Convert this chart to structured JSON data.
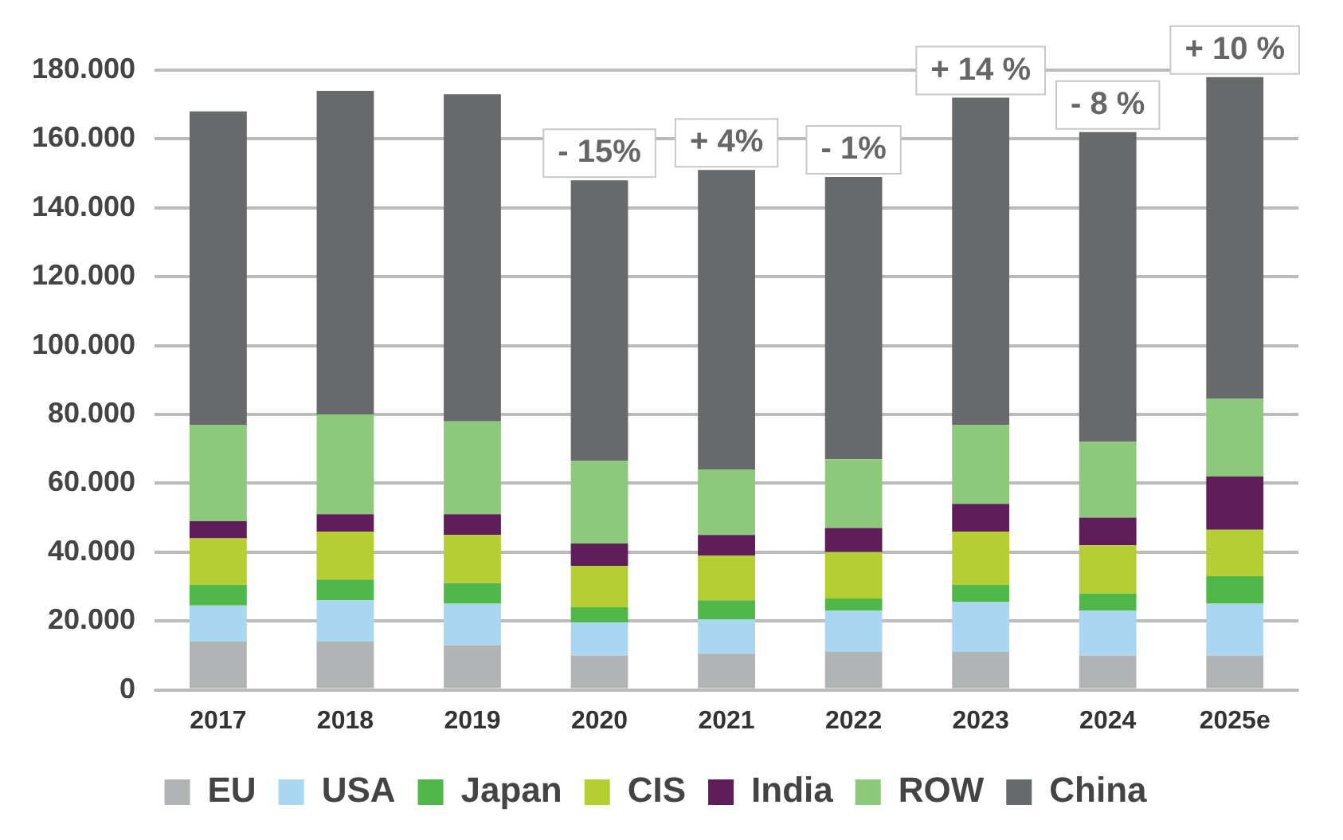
{
  "chart_data": {
    "type": "bar",
    "stacked": true,
    "categories": [
      "2017",
      "2018",
      "2019",
      "2020",
      "2021",
      "2022",
      "2023",
      "2024",
      "2025e"
    ],
    "series": [
      {
        "name": "EU",
        "color": "#b1b3b4",
        "values": [
          14000,
          14000,
          13000,
          10000,
          10500,
          11000,
          11000,
          10000,
          10000
        ]
      },
      {
        "name": "USA",
        "color": "#a9d6f0",
        "values": [
          10500,
          12000,
          12000,
          9500,
          10000,
          12000,
          14500,
          13000,
          15000
        ]
      },
      {
        "name": "Japan",
        "color": "#4fb848",
        "values": [
          6000,
          6000,
          6000,
          4500,
          5500,
          3500,
          5000,
          5000,
          8000
        ]
      },
      {
        "name": "CIS",
        "color": "#b5cf32",
        "values": [
          13500,
          14000,
          14000,
          12000,
          13000,
          13500,
          15500,
          14000,
          13500
        ]
      },
      {
        "name": "India",
        "color": "#5f1d5a",
        "values": [
          5000,
          5000,
          6000,
          6500,
          6000,
          7000,
          8000,
          8000,
          15500
        ]
      },
      {
        "name": "ROW",
        "color": "#8cc97a",
        "values": [
          28000,
          29000,
          27000,
          24000,
          19000,
          20000,
          23000,
          22000,
          22500
        ]
      },
      {
        "name": "China",
        "color": "#676a6a",
        "values": [
          91000,
          94000,
          95000,
          81500,
          87000,
          82000,
          95000,
          90000,
          93500
        ]
      }
    ],
    "ylim": [
      0,
      180000
    ],
    "yticks": [
      {
        "value": 0,
        "label": "0"
      },
      {
        "value": 20000,
        "label": "20.000"
      },
      {
        "value": 40000,
        "label": "40.000"
      },
      {
        "value": 60000,
        "label": "60.000"
      },
      {
        "value": 80000,
        "label": "80.000"
      },
      {
        "value": 100000,
        "label": "100.000"
      },
      {
        "value": 120000,
        "label": "120.000"
      },
      {
        "value": 140000,
        "label": "140.000"
      },
      {
        "value": 160000,
        "label": "160.000"
      },
      {
        "value": 180000,
        "label": "180.000"
      }
    ],
    "grid": "y",
    "legend": "bottom",
    "annotations": [
      {
        "text": "- 15%",
        "x": "2020",
        "y": 148000
      },
      {
        "text": "+ 4%",
        "x": "2021",
        "y": 151000
      },
      {
        "text": "- 1%",
        "x": "2022",
        "y": 149000
      },
      {
        "text": "+ 14 %",
        "x": "2023",
        "y": 172000
      },
      {
        "text": "- 8 %",
        "x": "2024",
        "y": 162000
      },
      {
        "text": "+ 10 %",
        "x": "2025e",
        "y": 178000
      }
    ]
  }
}
